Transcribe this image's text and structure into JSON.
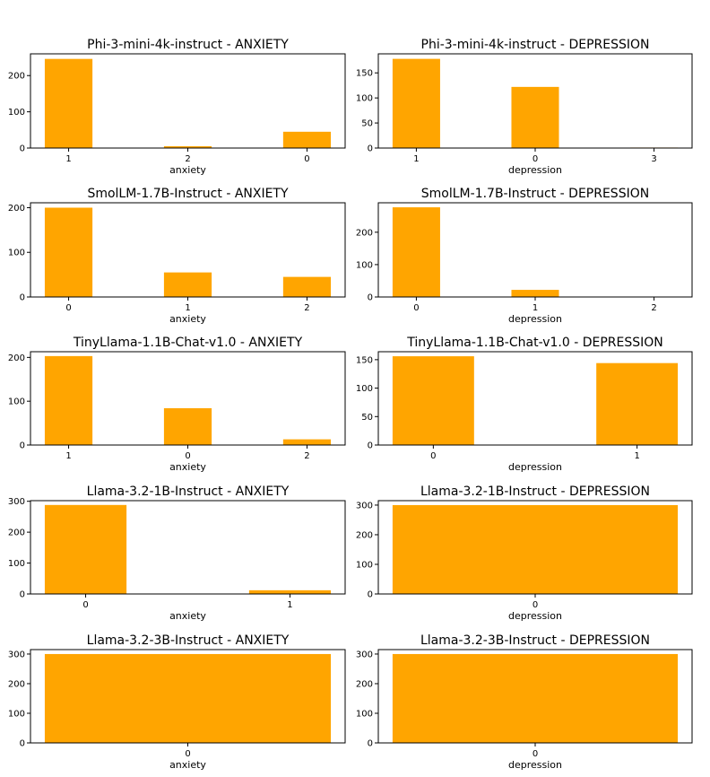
{
  "figure": {
    "bar_color": "#FFA500",
    "axis_color": "#000000"
  },
  "chart_data": [
    {
      "type": "bar",
      "title": "Phi-3-mini-4k-instruct - ANXIETY",
      "xlabel": "anxiety",
      "ylabel": "",
      "categories": [
        "1",
        "2",
        "0"
      ],
      "values": [
        246,
        5,
        45
      ],
      "ylim": [
        0,
        260
      ],
      "yticks": [
        0,
        100,
        200
      ]
    },
    {
      "type": "bar",
      "title": "Phi-3-mini-4k-instruct - DEPRESSION",
      "xlabel": "depression",
      "ylabel": "",
      "categories": [
        "1",
        "0",
        "3"
      ],
      "values": [
        178,
        122,
        1
      ],
      "ylim": [
        0,
        188
      ],
      "yticks": [
        0,
        50,
        100,
        150
      ]
    },
    {
      "type": "bar",
      "title": "SmolLM-1.7B-Instruct - ANXIETY",
      "xlabel": "anxiety",
      "ylabel": "",
      "categories": [
        "0",
        "1",
        "2"
      ],
      "values": [
        200,
        55,
        45
      ],
      "ylim": [
        0,
        211
      ],
      "yticks": [
        0,
        100,
        200
      ]
    },
    {
      "type": "bar",
      "title": "SmolLM-1.7B-Instruct - DEPRESSION",
      "xlabel": "depression",
      "ylabel": "",
      "categories": [
        "0",
        "1",
        "2"
      ],
      "values": [
        277,
        22,
        1
      ],
      "ylim": [
        0,
        291
      ],
      "yticks": [
        0,
        100,
        200
      ]
    },
    {
      "type": "bar",
      "title": "TinyLlama-1.1B-Chat-v1.0 - ANXIETY",
      "xlabel": "anxiety",
      "ylabel": "",
      "categories": [
        "1",
        "0",
        "2"
      ],
      "values": [
        203,
        84,
        13
      ],
      "ylim": [
        0,
        213
      ],
      "yticks": [
        0,
        100,
        200
      ]
    },
    {
      "type": "bar",
      "title": "TinyLlama-1.1B-Chat-v1.0 - DEPRESSION",
      "xlabel": "depression",
      "ylabel": "",
      "categories": [
        "0",
        "1"
      ],
      "values": [
        156,
        144
      ],
      "ylim": [
        0,
        164
      ],
      "yticks": [
        0,
        50,
        100,
        150
      ]
    },
    {
      "type": "bar",
      "title": "Llama-3.2-1B-Instruct - ANXIETY",
      "xlabel": "anxiety",
      "ylabel": "",
      "categories": [
        "0",
        "1"
      ],
      "values": [
        288,
        12
      ],
      "ylim": [
        0,
        302
      ],
      "yticks": [
        0,
        100,
        200,
        300
      ]
    },
    {
      "type": "bar",
      "title": "Llama-3.2-1B-Instruct - DEPRESSION",
      "xlabel": "depression",
      "ylabel": "",
      "categories": [
        "0"
      ],
      "values": [
        300
      ],
      "ylim": [
        0,
        315
      ],
      "yticks": [
        0,
        100,
        200,
        300
      ]
    },
    {
      "type": "bar",
      "title": "Llama-3.2-3B-Instruct - ANXIETY",
      "xlabel": "anxiety",
      "ylabel": "",
      "categories": [
        "0"
      ],
      "values": [
        300
      ],
      "ylim": [
        0,
        315
      ],
      "yticks": [
        0,
        100,
        200,
        300
      ]
    },
    {
      "type": "bar",
      "title": "Llama-3.2-3B-Instruct - DEPRESSION",
      "xlabel": "depression",
      "ylabel": "",
      "categories": [
        "0"
      ],
      "values": [
        300
      ],
      "ylim": [
        0,
        315
      ],
      "yticks": [
        0,
        100,
        200,
        300
      ]
    }
  ]
}
